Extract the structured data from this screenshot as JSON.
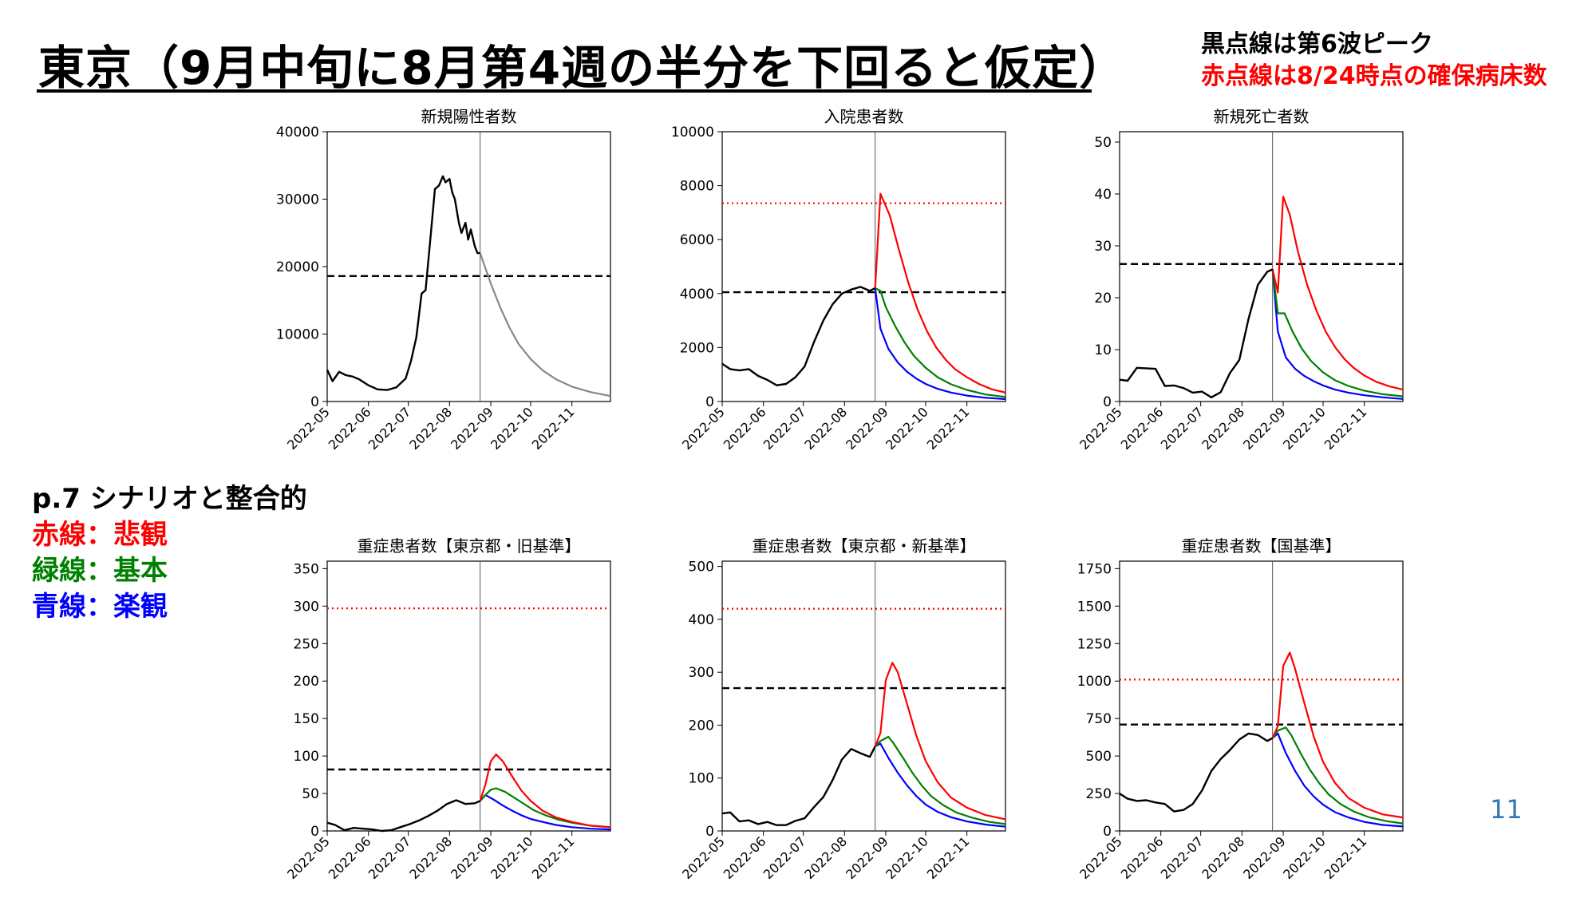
{
  "page": {
    "title": "東京（9月中旬に8月第4週の半分を下回ると仮定）",
    "note_black": "黒点線は第6波ピーク",
    "note_red": "赤点線は8/24時点の確保病床数",
    "legend_heading": "p.7 シナリオと整合的",
    "legend_red": "赤線：悲観",
    "legend_green": "緑線：基本",
    "legend_blue": "青線：楽観",
    "page_number": "11"
  },
  "colors": {
    "observed": "#000000",
    "projection_single": "#888888",
    "pessimistic": "#ff0000",
    "baseline": "#008000",
    "optimistic": "#0000ff",
    "peak6_line": "#000000",
    "bed_capacity_line": "#ff0000"
  },
  "chart_data": [
    {
      "type": "line",
      "title": "新規陽性者数",
      "x_ticks": [
        "2022-05",
        "2022-06",
        "2022-07",
        "2022-08",
        "2022-09",
        "2022-10",
        "2022-11"
      ],
      "x_range": [
        "2022-05-01",
        "2022-11-30"
      ],
      "ylim": [
        0,
        40000
      ],
      "y_ticks": [
        0,
        10000,
        20000,
        30000,
        40000
      ],
      "vline": "2022-08-24",
      "hline_black": 18600,
      "hline_red": null,
      "observed": {
        "x": [
          "2022-05-01",
          "2022-05-05",
          "2022-05-10",
          "2022-05-15",
          "2022-05-20",
          "2022-05-25",
          "2022-06-01",
          "2022-06-08",
          "2022-06-15",
          "2022-06-22",
          "2022-06-29",
          "2022-07-03",
          "2022-07-07",
          "2022-07-11",
          "2022-07-14",
          "2022-07-18",
          "2022-07-21",
          "2022-07-24",
          "2022-07-27",
          "2022-07-29",
          "2022-08-01",
          "2022-08-03",
          "2022-08-05",
          "2022-08-08",
          "2022-08-10",
          "2022-08-13",
          "2022-08-15",
          "2022-08-17",
          "2022-08-20",
          "2022-08-22",
          "2022-08-24"
        ],
        "y": [
          4700,
          3000,
          4400,
          3900,
          3700,
          3300,
          2400,
          1800,
          1700,
          2100,
          3400,
          6000,
          9500,
          16000,
          16500,
          25000,
          31500,
          32000,
          33400,
          32500,
          33000,
          31000,
          30000,
          26500,
          25000,
          26500,
          24000,
          25500,
          23000,
          22000,
          22000
        ]
      },
      "projection": {
        "x": [
          "2022-08-24",
          "2022-09-01",
          "2022-09-08",
          "2022-09-15",
          "2022-09-22",
          "2022-10-01",
          "2022-10-10",
          "2022-10-20",
          "2022-11-01",
          "2022-11-15",
          "2022-11-30"
        ],
        "y": [
          22000,
          17500,
          14000,
          11000,
          8500,
          6300,
          4600,
          3300,
          2200,
          1400,
          800
        ]
      }
    },
    {
      "type": "line",
      "title": "入院患者数",
      "x_ticks": [
        "2022-05",
        "2022-06",
        "2022-07",
        "2022-08",
        "2022-09",
        "2022-10",
        "2022-11"
      ],
      "x_range": [
        "2022-05-01",
        "2022-11-30"
      ],
      "ylim": [
        0,
        10000
      ],
      "y_ticks": [
        0,
        2000,
        4000,
        6000,
        8000,
        10000
      ],
      "vline": "2022-08-24",
      "hline_black": 4050,
      "hline_red": 7350,
      "observed": {
        "x": [
          "2022-05-01",
          "2022-05-07",
          "2022-05-14",
          "2022-05-21",
          "2022-05-28",
          "2022-06-04",
          "2022-06-11",
          "2022-06-18",
          "2022-06-25",
          "2022-07-02",
          "2022-07-09",
          "2022-07-16",
          "2022-07-23",
          "2022-07-30",
          "2022-08-06",
          "2022-08-13",
          "2022-08-20",
          "2022-08-24"
        ],
        "y": [
          1400,
          1200,
          1150,
          1200,
          950,
          800,
          600,
          650,
          900,
          1300,
          2200,
          3000,
          3600,
          4000,
          4150,
          4250,
          4100,
          4200
        ]
      },
      "pessimistic": {
        "x": [
          "2022-08-24",
          "2022-08-28",
          "2022-09-04",
          "2022-09-11",
          "2022-09-18",
          "2022-09-25",
          "2022-10-02",
          "2022-10-09",
          "2022-10-16",
          "2022-10-23",
          "2022-11-01",
          "2022-11-10",
          "2022-11-20",
          "2022-11-30"
        ],
        "y": [
          4200,
          7700,
          6900,
          5600,
          4400,
          3400,
          2600,
          2000,
          1550,
          1200,
          900,
          650,
          450,
          330
        ]
      },
      "baseline": {
        "x": [
          "2022-08-24",
          "2022-08-28",
          "2022-09-01",
          "2022-09-08",
          "2022-09-15",
          "2022-09-22",
          "2022-10-01",
          "2022-10-10",
          "2022-10-20",
          "2022-11-01",
          "2022-11-15",
          "2022-11-30"
        ],
        "y": [
          4200,
          4100,
          3500,
          2800,
          2200,
          1700,
          1250,
          900,
          640,
          430,
          260,
          170
        ]
      },
      "optimistic": {
        "x": [
          "2022-08-24",
          "2022-08-28",
          "2022-09-03",
          "2022-09-10",
          "2022-09-17",
          "2022-09-24",
          "2022-10-01",
          "2022-10-10",
          "2022-10-20",
          "2022-11-01",
          "2022-11-15",
          "2022-11-30"
        ],
        "y": [
          4200,
          2700,
          1950,
          1450,
          1100,
          850,
          650,
          470,
          330,
          220,
          140,
          90
        ]
      }
    },
    {
      "type": "line",
      "title": "新規死亡者数",
      "x_ticks": [
        "2022-05",
        "2022-06",
        "2022-07",
        "2022-08",
        "2022-09",
        "2022-10",
        "2022-11"
      ],
      "x_range": [
        "2022-05-01",
        "2022-11-30"
      ],
      "ylim": [
        0,
        52
      ],
      "y_ticks": [
        0,
        10,
        20,
        30,
        40,
        50
      ],
      "vline": "2022-08-24",
      "hline_black": 26.5,
      "hline_red": null,
      "observed": {
        "x": [
          "2022-05-01",
          "2022-05-07",
          "2022-05-14",
          "2022-05-21",
          "2022-05-28",
          "2022-06-04",
          "2022-06-11",
          "2022-06-18",
          "2022-06-25",
          "2022-07-02",
          "2022-07-09",
          "2022-07-16",
          "2022-07-23",
          "2022-07-30",
          "2022-08-06",
          "2022-08-13",
          "2022-08-20",
          "2022-08-24"
        ],
        "y": [
          4.2,
          4.0,
          6.5,
          6.4,
          6.3,
          3.0,
          3.1,
          2.6,
          1.7,
          1.9,
          0.8,
          1.8,
          5.5,
          8.0,
          16.0,
          22.5,
          25.0,
          25.5
        ]
      },
      "pessimistic": {
        "x": [
          "2022-08-24",
          "2022-08-28",
          "2022-09-01",
          "2022-09-06",
          "2022-09-12",
          "2022-09-19",
          "2022-09-26",
          "2022-10-03",
          "2022-10-10",
          "2022-10-17",
          "2022-10-24",
          "2022-11-01",
          "2022-11-10",
          "2022-11-20",
          "2022-11-30"
        ],
        "y": [
          25.5,
          21.0,
          39.5,
          36.0,
          29.0,
          22.5,
          17.5,
          13.5,
          10.5,
          8.2,
          6.5,
          5.0,
          3.8,
          2.9,
          2.3
        ]
      },
      "baseline": {
        "x": [
          "2022-08-24",
          "2022-08-28",
          "2022-09-02",
          "2022-09-08",
          "2022-09-15",
          "2022-09-22",
          "2022-10-01",
          "2022-10-10",
          "2022-10-20",
          "2022-11-01",
          "2022-11-15",
          "2022-11-30"
        ],
        "y": [
          25.5,
          17.0,
          17.0,
          13.5,
          10.2,
          7.8,
          5.6,
          4.1,
          3.0,
          2.1,
          1.4,
          1.0
        ]
      },
      "optimistic": {
        "x": [
          "2022-08-24",
          "2022-08-28",
          "2022-09-03",
          "2022-09-10",
          "2022-09-17",
          "2022-09-24",
          "2022-10-01",
          "2022-10-10",
          "2022-10-20",
          "2022-11-01",
          "2022-11-15",
          "2022-11-30"
        ],
        "y": [
          25.5,
          13.5,
          8.5,
          6.3,
          4.9,
          3.9,
          3.1,
          2.3,
          1.7,
          1.2,
          0.8,
          0.5
        ]
      }
    },
    {
      "type": "line",
      "title": "重症患者数【東京都・旧基準】",
      "x_ticks": [
        "2022-05",
        "2022-06",
        "2022-07",
        "2022-08",
        "2022-09",
        "2022-10",
        "2022-11"
      ],
      "x_range": [
        "2022-05-01",
        "2022-11-30"
      ],
      "ylim": [
        0,
        360
      ],
      "y_ticks": [
        0,
        50,
        100,
        150,
        200,
        250,
        300,
        350
      ],
      "vline": "2022-08-24",
      "hline_black": 82,
      "hline_red": 297,
      "observed": {
        "x": [
          "2022-05-01",
          "2022-05-07",
          "2022-05-14",
          "2022-05-21",
          "2022-05-28",
          "2022-06-04",
          "2022-06-11",
          "2022-06-18",
          "2022-06-25",
          "2022-07-02",
          "2022-07-09",
          "2022-07-16",
          "2022-07-23",
          "2022-07-30",
          "2022-08-06",
          "2022-08-13",
          "2022-08-20",
          "2022-08-24"
        ],
        "y": [
          11,
          8,
          1,
          4,
          3,
          2,
          0,
          1,
          5,
          9,
          14,
          20,
          27,
          36,
          41,
          36,
          37,
          40
        ]
      },
      "pessimistic": {
        "x": [
          "2022-08-24",
          "2022-08-28",
          "2022-09-01",
          "2022-09-05",
          "2022-09-10",
          "2022-09-17",
          "2022-09-24",
          "2022-10-01",
          "2022-10-10",
          "2022-10-20",
          "2022-11-01",
          "2022-11-15",
          "2022-11-30"
        ],
        "y": [
          40,
          62,
          93,
          102,
          93,
          73,
          54,
          40,
          27,
          18,
          12,
          7,
          5
        ]
      },
      "baseline": {
        "x": [
          "2022-08-24",
          "2022-08-28",
          "2022-09-01",
          "2022-09-05",
          "2022-09-12",
          "2022-09-19",
          "2022-09-26",
          "2022-10-03",
          "2022-10-12",
          "2022-10-22",
          "2022-11-01",
          "2022-11-15",
          "2022-11-30"
        ],
        "y": [
          40,
          48,
          55,
          57,
          52,
          44,
          36,
          28,
          21,
          15,
          11,
          7,
          5
        ]
      },
      "optimistic": {
        "x": [
          "2022-08-24",
          "2022-08-28",
          "2022-09-03",
          "2022-09-10",
          "2022-09-17",
          "2022-09-24",
          "2022-10-01",
          "2022-10-10",
          "2022-10-20",
          "2022-11-01",
          "2022-11-15",
          "2022-11-30"
        ],
        "y": [
          40,
          48,
          42,
          34,
          27,
          21,
          16,
          12,
          8,
          5,
          3,
          2
        ]
      }
    },
    {
      "type": "line",
      "title": "重症患者数【東京都・新基準】",
      "x_ticks": [
        "2022-05",
        "2022-06",
        "2022-07",
        "2022-08",
        "2022-09",
        "2022-10",
        "2022-11"
      ],
      "x_range": [
        "2022-05-01",
        "2022-11-30"
      ],
      "ylim": [
        0,
        510
      ],
      "y_ticks": [
        0,
        100,
        200,
        300,
        400,
        500
      ],
      "vline": "2022-08-24",
      "hline_black": 270,
      "hline_red": 420,
      "observed": {
        "x": [
          "2022-05-01",
          "2022-05-07",
          "2022-05-14",
          "2022-05-21",
          "2022-05-28",
          "2022-06-04",
          "2022-06-11",
          "2022-06-18",
          "2022-06-25",
          "2022-07-02",
          "2022-07-09",
          "2022-07-16",
          "2022-07-23",
          "2022-07-30",
          "2022-08-06",
          "2022-08-13",
          "2022-08-20",
          "2022-08-24"
        ],
        "y": [
          33,
          35,
          18,
          20,
          13,
          17,
          11,
          11,
          19,
          24,
          45,
          64,
          96,
          135,
          155,
          147,
          140,
          160
        ]
      },
      "pessimistic": {
        "x": [
          "2022-08-24",
          "2022-08-28",
          "2022-09-01",
          "2022-09-06",
          "2022-09-10",
          "2022-09-17",
          "2022-09-24",
          "2022-10-01",
          "2022-10-10",
          "2022-10-20",
          "2022-11-01",
          "2022-11-15",
          "2022-11-30"
        ],
        "y": [
          160,
          185,
          285,
          318,
          300,
          240,
          180,
          132,
          92,
          63,
          44,
          30,
          22
        ]
      },
      "baseline": {
        "x": [
          "2022-08-24",
          "2022-08-28",
          "2022-09-03",
          "2022-09-07",
          "2022-09-14",
          "2022-09-21",
          "2022-09-28",
          "2022-10-05",
          "2022-10-14",
          "2022-10-24",
          "2022-11-05",
          "2022-11-18",
          "2022-11-30"
        ],
        "y": [
          160,
          170,
          178,
          165,
          138,
          110,
          86,
          66,
          49,
          35,
          25,
          17,
          13
        ]
      },
      "optimistic": {
        "x": [
          "2022-08-24",
          "2022-08-28",
          "2022-09-03",
          "2022-09-10",
          "2022-09-17",
          "2022-09-24",
          "2022-10-01",
          "2022-10-10",
          "2022-10-20",
          "2022-11-01",
          "2022-11-15",
          "2022-11-30"
        ],
        "y": [
          160,
          165,
          138,
          110,
          86,
          66,
          50,
          36,
          26,
          18,
          12,
          8
        ]
      }
    },
    {
      "type": "line",
      "title": "重症患者数【国基準】",
      "x_ticks": [
        "2022-05",
        "2022-06",
        "2022-07",
        "2022-08",
        "2022-09",
        "2022-10",
        "2022-11"
      ],
      "x_range": [
        "2022-05-01",
        "2022-11-30"
      ],
      "ylim": [
        0,
        1800
      ],
      "y_ticks": [
        0,
        250,
        500,
        750,
        1000,
        1250,
        1500,
        1750
      ],
      "vline": "2022-08-24",
      "hline_black": 710,
      "hline_red": 1010,
      "observed": {
        "x": [
          "2022-05-01",
          "2022-05-07",
          "2022-05-14",
          "2022-05-21",
          "2022-05-28",
          "2022-06-04",
          "2022-06-11",
          "2022-06-18",
          "2022-06-25",
          "2022-07-02",
          "2022-07-09",
          "2022-07-16",
          "2022-07-23",
          "2022-07-30",
          "2022-08-06",
          "2022-08-13",
          "2022-08-20",
          "2022-08-24"
        ],
        "y": [
          250,
          215,
          200,
          205,
          190,
          180,
          130,
          140,
          180,
          270,
          400,
          480,
          540,
          610,
          650,
          640,
          600,
          620
        ]
      },
      "pessimistic": {
        "x": [
          "2022-08-24",
          "2022-08-28",
          "2022-09-01",
          "2022-09-06",
          "2022-09-10",
          "2022-09-17",
          "2022-09-24",
          "2022-10-01",
          "2022-10-10",
          "2022-10-20",
          "2022-11-01",
          "2022-11-15",
          "2022-11-30"
        ],
        "y": [
          620,
          700,
          1100,
          1190,
          1080,
          850,
          630,
          460,
          320,
          220,
          155,
          110,
          90
        ]
      },
      "baseline": {
        "x": [
          "2022-08-24",
          "2022-08-28",
          "2022-09-03",
          "2022-09-07",
          "2022-09-14",
          "2022-09-21",
          "2022-09-28",
          "2022-10-05",
          "2022-10-14",
          "2022-10-24",
          "2022-11-05",
          "2022-11-18",
          "2022-11-30"
        ],
        "y": [
          620,
          670,
          690,
          640,
          520,
          410,
          320,
          245,
          180,
          130,
          90,
          65,
          50
        ]
      },
      "optimistic": {
        "x": [
          "2022-08-24",
          "2022-08-28",
          "2022-09-03",
          "2022-09-10",
          "2022-09-17",
          "2022-09-24",
          "2022-10-01",
          "2022-10-10",
          "2022-10-20",
          "2022-11-01",
          "2022-11-15",
          "2022-11-30"
        ],
        "y": [
          620,
          650,
          520,
          400,
          300,
          230,
          175,
          125,
          90,
          60,
          40,
          30
        ]
      }
    }
  ]
}
